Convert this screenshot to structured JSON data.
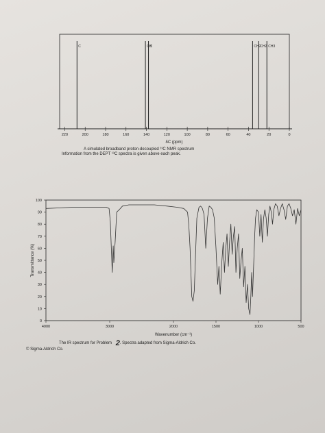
{
  "nmr": {
    "xlabel": "δC (ppm)",
    "caption_line1": "A simulated broadband proton-decoupled ¹³C NMR spectrum",
    "caption_line2": "Information from the DEPT ¹³C spectra is given above each peak."
  },
  "ir": {
    "caption": "The IR spectrum for Problem",
    "problem_number": "2",
    "caption_tail": ". Spectra adapted from Sigma-Aldrich Co.",
    "copyright": "© Sigma-Aldrich Co."
  },
  "chart_data": [
    {
      "type": "line",
      "title": "",
      "xlabel": "δC (ppm)",
      "xlim": [
        225,
        0
      ],
      "x_ticks": [
        220,
        200,
        180,
        160,
        140,
        120,
        100,
        80,
        60,
        40,
        20,
        0
      ],
      "peaks": [
        {
          "ppm": 208,
          "label": "C"
        },
        {
          "ppm": 141,
          "label": "CH"
        },
        {
          "ppm": 138,
          "label": "C"
        },
        {
          "ppm": 36,
          "label": "CH2"
        },
        {
          "ppm": 30,
          "label": "CH2"
        },
        {
          "ppm": 22,
          "label": "CH3"
        }
      ]
    },
    {
      "type": "line",
      "title": "",
      "xlabel": "Wavenumber (cm⁻¹)",
      "ylabel": "Transmittance (%)",
      "xlim": [
        4000,
        500
      ],
      "ylim": [
        0,
        100
      ],
      "x_ticks": [
        4000,
        3000,
        2000,
        1500,
        1000,
        500
      ],
      "y_ticks": [
        0,
        10,
        20,
        30,
        40,
        50,
        60,
        70,
        80,
        90,
        100
      ],
      "series": [
        {
          "x": [
            4000,
            3600,
            3200,
            3050,
            3010,
            2990,
            2960,
            2945,
            2935,
            2915,
            2890,
            2870,
            2850,
            2800,
            2700,
            2600,
            2500,
            2300,
            2100,
            1950,
            1880,
            1835,
            1820,
            1805,
            1785,
            1770,
            1755,
            1740,
            1725,
            1700,
            1680,
            1660,
            1640,
            1620,
            1600,
            1580,
            1560,
            1540,
            1520,
            1500,
            1480,
            1465,
            1450,
            1430,
            1415,
            1400,
            1385,
            1370,
            1355,
            1340,
            1325,
            1310,
            1295,
            1280,
            1265,
            1250,
            1235,
            1220,
            1205,
            1190,
            1175,
            1160,
            1145,
            1130,
            1115,
            1100,
            1090,
            1080,
            1070,
            1055,
            1045,
            1035,
            1020,
            1000,
            985,
            970,
            955,
            940,
            925,
            910,
            895,
            880,
            865,
            850,
            835,
            820,
            800,
            780,
            760,
            740,
            720,
            700,
            680,
            660,
            640,
            620,
            600,
            580,
            560,
            540,
            520,
            500
          ],
          "y": [
            93,
            94,
            94,
            94,
            93,
            82,
            40,
            62,
            48,
            65,
            90,
            91,
            92,
            95,
            96,
            96,
            96,
            96,
            95,
            94,
            93,
            90,
            80,
            60,
            20,
            16,
            25,
            55,
            85,
            94,
            95,
            93,
            88,
            60,
            85,
            95,
            94,
            92,
            85,
            60,
            30,
            45,
            22,
            50,
            65,
            40,
            60,
            72,
            45,
            65,
            80,
            55,
            70,
            78,
            40,
            60,
            72,
            35,
            50,
            60,
            28,
            45,
            15,
            30,
            10,
            5,
            20,
            40,
            20,
            50,
            70,
            85,
            92,
            90,
            70,
            88,
            65,
            85,
            92,
            85,
            70,
            88,
            95,
            90,
            80,
            92,
            97,
            95,
            87,
            93,
            97,
            92,
            84,
            95,
            97,
            93,
            87,
            92,
            80,
            93,
            87,
            92
          ]
        }
      ]
    }
  ]
}
